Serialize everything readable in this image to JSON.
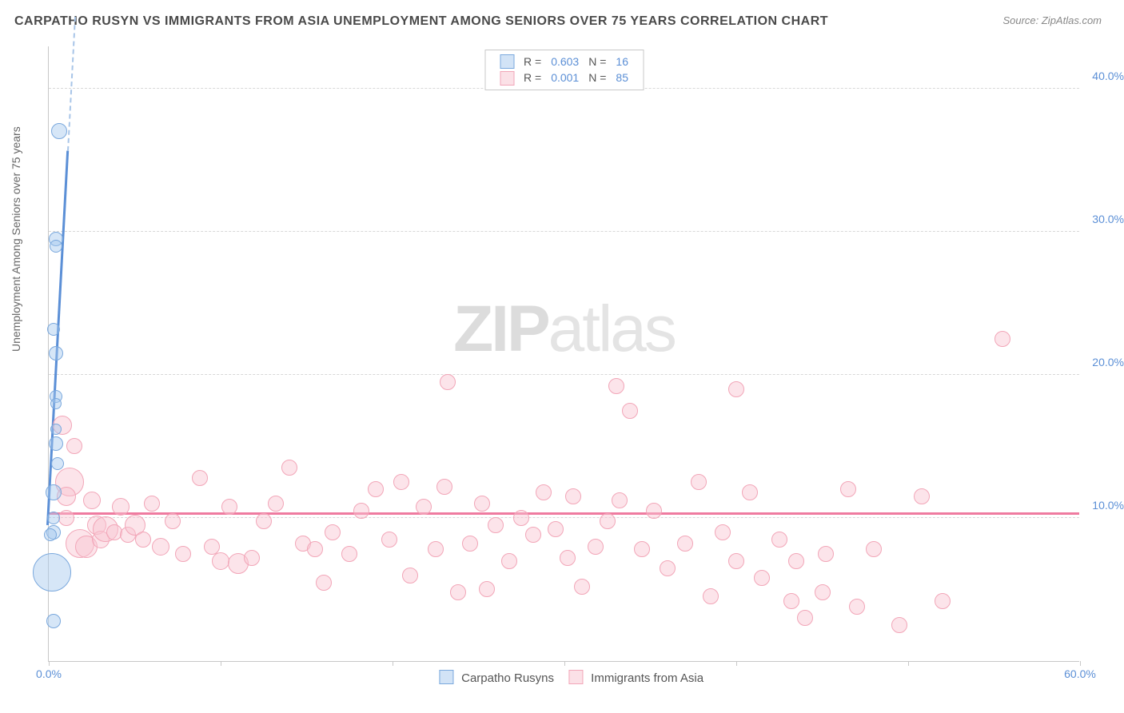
{
  "header": {
    "title": "CARPATHO RUSYN VS IMMIGRANTS FROM ASIA UNEMPLOYMENT AMONG SENIORS OVER 75 YEARS CORRELATION CHART",
    "source": "Source: ZipAtlas.com"
  },
  "watermark": {
    "part1": "ZIP",
    "part2": "atlas"
  },
  "chart": {
    "type": "scatter",
    "ylabel": "Unemployment Among Seniors over 75 years",
    "xlim": [
      0,
      60
    ],
    "ylim": [
      0,
      43
    ],
    "xticks": [
      {
        "v": 0,
        "label": "0.0%"
      },
      {
        "v": 10
      },
      {
        "v": 20
      },
      {
        "v": 30
      },
      {
        "v": 40
      },
      {
        "v": 50
      },
      {
        "v": 60,
        "label": "60.0%"
      }
    ],
    "yticks": [
      {
        "v": 10,
        "label": "10.0%"
      },
      {
        "v": 20,
        "label": "20.0%"
      },
      {
        "v": 30,
        "label": "30.0%"
      },
      {
        "v": 40,
        "label": "40.0%"
      }
    ],
    "grid_color": "#d8d8d8",
    "background_color": "#ffffff",
    "series": {
      "blue": {
        "name": "Carpatho Rusyns",
        "color_fill": "rgba(165,200,237,0.45)",
        "color_stroke": "#7aa8dd",
        "R": "0.603",
        "N": "16",
        "trend": {
          "x1": 0,
          "y1": 9.5,
          "x2": 1.5,
          "y2": 43,
          "color": "#5b8fd6",
          "width": 3
        },
        "points": [
          {
            "x": 0.2,
            "y": 6.2,
            "r": 24
          },
          {
            "x": 0.3,
            "y": 9.0,
            "r": 9
          },
          {
            "x": 0.3,
            "y": 2.8,
            "r": 9
          },
          {
            "x": 0.1,
            "y": 8.8,
            "r": 8
          },
          {
            "x": 0.6,
            "y": 37.0,
            "r": 10
          },
          {
            "x": 0.4,
            "y": 29.5,
            "r": 9
          },
          {
            "x": 0.4,
            "y": 29.0,
            "r": 8
          },
          {
            "x": 0.3,
            "y": 23.2,
            "r": 8
          },
          {
            "x": 0.4,
            "y": 21.5,
            "r": 9
          },
          {
            "x": 0.4,
            "y": 18.5,
            "r": 8
          },
          {
            "x": 0.4,
            "y": 18.0,
            "r": 7
          },
          {
            "x": 0.4,
            "y": 15.2,
            "r": 9
          },
          {
            "x": 0.5,
            "y": 13.8,
            "r": 8
          },
          {
            "x": 0.3,
            "y": 11.8,
            "r": 10
          },
          {
            "x": 0.3,
            "y": 10.0,
            "r": 8
          },
          {
            "x": 0.4,
            "y": 16.2,
            "r": 7
          }
        ]
      },
      "pink": {
        "name": "Immigrants from Asia",
        "color_fill": "rgba(248,195,208,0.45)",
        "color_stroke": "#f2a6b8",
        "R": "0.001",
        "N": "85",
        "trend": {
          "y": 10.2,
          "color": "#ef7ba0",
          "width": 3
        },
        "points": [
          {
            "x": 0.8,
            "y": 16.5,
            "r": 12
          },
          {
            "x": 1.2,
            "y": 12.5,
            "r": 18
          },
          {
            "x": 1.0,
            "y": 11.5,
            "r": 12
          },
          {
            "x": 1.5,
            "y": 15.0,
            "r": 10
          },
          {
            "x": 1.8,
            "y": 8.2,
            "r": 18
          },
          {
            "x": 2.2,
            "y": 8.0,
            "r": 14
          },
          {
            "x": 2.5,
            "y": 11.2,
            "r": 11
          },
          {
            "x": 2.8,
            "y": 9.5,
            "r": 12
          },
          {
            "x": 3.0,
            "y": 8.5,
            "r": 11
          },
          {
            "x": 3.3,
            "y": 9.2,
            "r": 16
          },
          {
            "x": 3.8,
            "y": 9.0,
            "r": 10
          },
          {
            "x": 4.2,
            "y": 10.8,
            "r": 11
          },
          {
            "x": 4.6,
            "y": 8.8,
            "r": 10
          },
          {
            "x": 5.0,
            "y": 9.5,
            "r": 13
          },
          {
            "x": 5.5,
            "y": 8.5,
            "r": 10
          },
          {
            "x": 6.0,
            "y": 11.0,
            "r": 10
          },
          {
            "x": 6.5,
            "y": 8.0,
            "r": 11
          },
          {
            "x": 7.2,
            "y": 9.8,
            "r": 10
          },
          {
            "x": 7.8,
            "y": 7.5,
            "r": 10
          },
          {
            "x": 8.8,
            "y": 12.8,
            "r": 10
          },
          {
            "x": 9.5,
            "y": 8.0,
            "r": 10
          },
          {
            "x": 10.0,
            "y": 7.0,
            "r": 11
          },
          {
            "x": 10.5,
            "y": 10.8,
            "r": 10
          },
          {
            "x": 11.0,
            "y": 6.8,
            "r": 13
          },
          {
            "x": 11.8,
            "y": 7.2,
            "r": 10
          },
          {
            "x": 12.5,
            "y": 9.8,
            "r": 10
          },
          {
            "x": 13.2,
            "y": 11.0,
            "r": 10
          },
          {
            "x": 14.0,
            "y": 13.5,
            "r": 10
          },
          {
            "x": 14.8,
            "y": 8.2,
            "r": 10
          },
          {
            "x": 15.5,
            "y": 7.8,
            "r": 10
          },
          {
            "x": 16.0,
            "y": 5.5,
            "r": 10
          },
          {
            "x": 16.5,
            "y": 9.0,
            "r": 10
          },
          {
            "x": 17.5,
            "y": 7.5,
            "r": 10
          },
          {
            "x": 18.2,
            "y": 10.5,
            "r": 10
          },
          {
            "x": 19.0,
            "y": 12.0,
            "r": 10
          },
          {
            "x": 19.8,
            "y": 8.5,
            "r": 10
          },
          {
            "x": 20.5,
            "y": 12.5,
            "r": 10
          },
          {
            "x": 21.0,
            "y": 6.0,
            "r": 10
          },
          {
            "x": 21.8,
            "y": 10.8,
            "r": 10
          },
          {
            "x": 22.5,
            "y": 7.8,
            "r": 10
          },
          {
            "x": 23.0,
            "y": 12.2,
            "r": 10
          },
          {
            "x": 23.2,
            "y": 19.5,
            "r": 10
          },
          {
            "x": 23.8,
            "y": 4.8,
            "r": 10
          },
          {
            "x": 24.5,
            "y": 8.2,
            "r": 10
          },
          {
            "x": 25.2,
            "y": 11.0,
            "r": 10
          },
          {
            "x": 25.5,
            "y": 5.0,
            "r": 10
          },
          {
            "x": 26.0,
            "y": 9.5,
            "r": 10
          },
          {
            "x": 26.8,
            "y": 7.0,
            "r": 10
          },
          {
            "x": 27.5,
            "y": 10.0,
            "r": 10
          },
          {
            "x": 28.2,
            "y": 8.8,
            "r": 10
          },
          {
            "x": 28.8,
            "y": 11.8,
            "r": 10
          },
          {
            "x": 29.5,
            "y": 9.2,
            "r": 10
          },
          {
            "x": 30.2,
            "y": 7.2,
            "r": 10
          },
          {
            "x": 30.5,
            "y": 11.5,
            "r": 10
          },
          {
            "x": 31.0,
            "y": 5.2,
            "r": 10
          },
          {
            "x": 31.8,
            "y": 8.0,
            "r": 10
          },
          {
            "x": 32.5,
            "y": 9.8,
            "r": 10
          },
          {
            "x": 33.0,
            "y": 19.2,
            "r": 10
          },
          {
            "x": 33.2,
            "y": 11.2,
            "r": 10
          },
          {
            "x": 33.8,
            "y": 17.5,
            "r": 10
          },
          {
            "x": 34.5,
            "y": 7.8,
            "r": 10
          },
          {
            "x": 35.2,
            "y": 10.5,
            "r": 10
          },
          {
            "x": 36.0,
            "y": 6.5,
            "r": 10
          },
          {
            "x": 37.0,
            "y": 8.2,
            "r": 10
          },
          {
            "x": 37.8,
            "y": 12.5,
            "r": 10
          },
          {
            "x": 38.5,
            "y": 4.5,
            "r": 10
          },
          {
            "x": 39.2,
            "y": 9.0,
            "r": 10
          },
          {
            "x": 40.0,
            "y": 7.0,
            "r": 10
          },
          {
            "x": 40.0,
            "y": 19.0,
            "r": 10
          },
          {
            "x": 40.8,
            "y": 11.8,
            "r": 10
          },
          {
            "x": 41.5,
            "y": 5.8,
            "r": 10
          },
          {
            "x": 42.5,
            "y": 8.5,
            "r": 10
          },
          {
            "x": 43.2,
            "y": 4.2,
            "r": 10
          },
          {
            "x": 43.5,
            "y": 7.0,
            "r": 10
          },
          {
            "x": 44.0,
            "y": 3.0,
            "r": 10
          },
          {
            "x": 45.0,
            "y": 4.8,
            "r": 10
          },
          {
            "x": 45.2,
            "y": 7.5,
            "r": 10
          },
          {
            "x": 46.5,
            "y": 12.0,
            "r": 10
          },
          {
            "x": 47.0,
            "y": 3.8,
            "r": 10
          },
          {
            "x": 48.0,
            "y": 7.8,
            "r": 10
          },
          {
            "x": 49.5,
            "y": 2.5,
            "r": 10
          },
          {
            "x": 50.8,
            "y": 11.5,
            "r": 10
          },
          {
            "x": 52.0,
            "y": 4.2,
            "r": 10
          },
          {
            "x": 55.5,
            "y": 22.5,
            "r": 10
          },
          {
            "x": 1.0,
            "y": 10.0,
            "r": 10
          }
        ]
      }
    },
    "legend_top": {
      "rows": [
        {
          "swatch_stroke": "#7aa8dd",
          "swatch_fill": "rgba(165,200,237,0.5)",
          "R_label": "R =",
          "R": "0.603",
          "N_label": "N =",
          "N": "16"
        },
        {
          "swatch_stroke": "#f2a6b8",
          "swatch_fill": "rgba(248,195,208,0.5)",
          "R_label": "R =",
          "R": "0.001",
          "N_label": "N =",
          "N": "85"
        }
      ]
    },
    "legend_bottom": [
      {
        "swatch_stroke": "#7aa8dd",
        "swatch_fill": "rgba(165,200,237,0.5)",
        "label": "Carpatho Rusyns"
      },
      {
        "swatch_stroke": "#f2a6b8",
        "swatch_fill": "rgba(248,195,208,0.5)",
        "label": "Immigrants from Asia"
      }
    ]
  }
}
